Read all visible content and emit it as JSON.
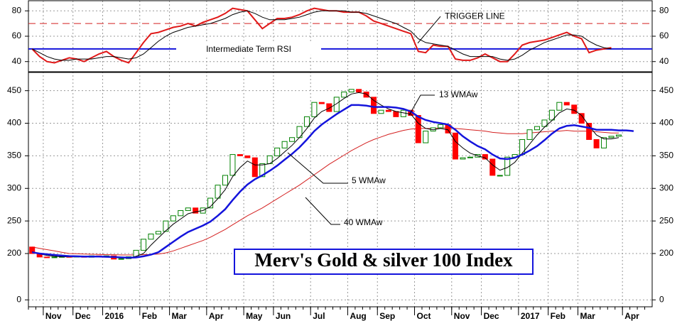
{
  "chart_data": [
    {
      "type": "line",
      "ylim": [
        32,
        88
      ],
      "yticks": [
        40,
        60,
        80
      ],
      "grid": true,
      "ref_lines": [
        {
          "value": 70,
          "label": "TRIGGER LINE",
          "color": "#d42020",
          "dashed": true
        },
        {
          "value": 50,
          "label": "Intermediate Term RSI",
          "color": "#1414dc",
          "dashed": false
        }
      ],
      "series": [
        {
          "color": "#e01818",
          "values": [
            50,
            44,
            40,
            39,
            41,
            43,
            42,
            40,
            43,
            46,
            48,
            44,
            41,
            39,
            47,
            55,
            62,
            63,
            65,
            67,
            68,
            70,
            68,
            71,
            73,
            75,
            78,
            82,
            81,
            80,
            73,
            66,
            70,
            74,
            74,
            75,
            77,
            80,
            82,
            81,
            80,
            80,
            79,
            79,
            79,
            76,
            72,
            70,
            68,
            66,
            64,
            62,
            48,
            47,
            53,
            52,
            52,
            42,
            41,
            41,
            43,
            46,
            43,
            40,
            40,
            46,
            53,
            55,
            56,
            57,
            59,
            61,
            63,
            60,
            58,
            47,
            49,
            50,
            51,
            null,
            null,
            null,
            null,
            null
          ]
        },
        {
          "color": "#000000",
          "values": [
            50,
            47,
            44,
            42,
            41,
            41,
            42,
            42,
            42,
            43,
            44,
            44,
            43,
            42,
            43,
            46,
            51,
            56,
            60,
            63,
            65,
            67,
            68,
            69,
            70,
            72,
            74,
            77,
            79,
            80,
            78,
            75,
            73,
            73,
            73,
            74,
            75,
            77,
            79,
            80,
            80,
            80,
            80,
            79,
            79,
            78,
            76,
            74,
            72,
            70,
            67,
            64,
            58,
            55,
            54,
            53,
            52,
            49,
            46,
            44,
            44,
            44,
            44,
            42,
            41,
            42,
            45,
            49,
            52,
            55,
            57,
            59,
            61,
            61,
            60,
            56,
            53,
            51,
            50,
            null,
            null,
            null,
            null,
            null
          ]
        }
      ]
    },
    {
      "type": "candlestick",
      "title": "Merv's Gold & silver 100 Index",
      "ylim": [
        -30,
        478
      ],
      "yticks": [
        0,
        200,
        250,
        300,
        350,
        400,
        450
      ],
      "grid": true,
      "categories": [
        null,
        null,
        "Nov",
        null,
        null,
        null,
        "Dec",
        null,
        null,
        null,
        "2016",
        null,
        null,
        null,
        null,
        "Feb",
        null,
        null,
        null,
        "Mar",
        null,
        null,
        null,
        null,
        "Apr",
        null,
        null,
        null,
        null,
        "May",
        null,
        null,
        null,
        "Jun",
        null,
        null,
        null,
        null,
        "Jul",
        null,
        null,
        null,
        null,
        "Aug",
        null,
        null,
        null,
        "Sep",
        null,
        null,
        null,
        null,
        "Oct",
        null,
        null,
        null,
        null,
        "Nov",
        null,
        null,
        null,
        "Dec",
        null,
        null,
        null,
        null,
        "2017",
        null,
        null,
        null,
        "Feb",
        null,
        null,
        null,
        "Mar",
        null,
        null,
        null,
        null,
        null,
        "Apr",
        null,
        null,
        null
      ],
      "up_color": "#008000",
      "down_color": "#ff0000",
      "open": [
        210,
        200,
        185,
        182,
        185,
        187,
        185,
        188,
        184,
        190,
        186,
        190,
        176,
        178,
        186,
        205,
        222,
        230,
        234,
        250,
        258,
        266,
        270,
        262,
        270,
        285,
        305,
        320,
        352,
        350,
        347,
        318,
        338,
        350,
        362,
        372,
        378,
        395,
        410,
        432,
        430,
        418,
        440,
        448,
        452,
        448,
        440,
        415,
        420,
        418,
        410,
        420,
        412,
        370,
        388,
        393,
        398,
        385,
        345,
        347,
        348,
        352,
        345,
        320,
        320,
        348,
        352,
        375,
        390,
        395,
        405,
        420,
        432,
        428,
        415,
        400,
        375,
        362,
        378,
        380,
        null,
        null,
        null,
        null
      ],
      "close": [
        200,
        185,
        182,
        185,
        187,
        185,
        188,
        184,
        190,
        186,
        190,
        176,
        178,
        186,
        205,
        222,
        230,
        234,
        250,
        258,
        266,
        270,
        262,
        270,
        285,
        305,
        320,
        352,
        350,
        347,
        318,
        338,
        350,
        362,
        372,
        378,
        395,
        410,
        432,
        430,
        418,
        440,
        448,
        452,
        448,
        440,
        415,
        420,
        418,
        410,
        420,
        412,
        370,
        388,
        393,
        398,
        385,
        345,
        347,
        348,
        352,
        345,
        320,
        320,
        348,
        352,
        375,
        390,
        395,
        405,
        420,
        432,
        428,
        415,
        400,
        375,
        362,
        378,
        380,
        382,
        null,
        null,
        null,
        null
      ],
      "series": [
        {
          "name": "5 WMAw",
          "color": "#000000",
          "values": [
            203,
            198,
            192,
            188,
            186,
            186,
            186,
            186,
            187,
            187,
            188,
            184,
            181,
            181,
            188,
            200,
            213,
            224,
            235,
            245,
            253,
            261,
            264,
            266,
            272,
            284,
            298,
            318,
            332,
            342,
            336,
            336,
            338,
            346,
            356,
            366,
            378,
            392,
            408,
            418,
            423,
            430,
            438,
            445,
            447,
            445,
            435,
            428,
            422,
            418,
            416,
            414,
            400,
            392,
            390,
            392,
            390,
            372,
            362,
            354,
            350,
            347,
            336,
            328,
            332,
            340,
            354,
            368,
            382,
            394,
            404,
            416,
            422,
            420,
            412,
            396,
            382,
            376,
            376,
            378,
            null,
            null,
            null,
            null
          ]
        },
        {
          "name": "13 WMAw",
          "color": "#1414dc",
          "values": [
            202,
            200,
            197,
            194,
            191,
            189,
            188,
            187,
            187,
            187,
            186,
            185,
            183,
            182,
            183,
            188,
            195,
            202,
            210,
            218,
            226,
            233,
            238,
            243,
            249,
            258,
            268,
            282,
            295,
            306,
            314,
            320,
            327,
            335,
            344,
            353,
            363,
            375,
            388,
            398,
            406,
            414,
            421,
            428,
            428,
            427,
            425,
            425,
            425,
            424,
            422,
            418,
            410,
            405,
            402,
            400,
            398,
            390,
            380,
            372,
            365,
            360,
            352,
            346,
            345,
            347,
            352,
            358,
            365,
            374,
            384,
            392,
            396,
            397,
            395,
            393,
            390,
            390,
            390,
            389,
            389,
            388,
            null,
            null
          ]
        },
        {
          "name": "40 WMAw",
          "color": "#d42020",
          "values": [
            210,
            208,
            206,
            204,
            202,
            200,
            199,
            198,
            197,
            196,
            195,
            195,
            194,
            194,
            194,
            195,
            196,
            198,
            201,
            204,
            208,
            212,
            216,
            220,
            225,
            231,
            237,
            244,
            251,
            258,
            264,
            270,
            277,
            284,
            291,
            298,
            305,
            313,
            321,
            329,
            337,
            344,
            351,
            358,
            364,
            370,
            375,
            379,
            383,
            386,
            389,
            391,
            392,
            392,
            392,
            393,
            393,
            392,
            391,
            390,
            389,
            388,
            386,
            385,
            384,
            384,
            384,
            385,
            386,
            387,
            388,
            388,
            389,
            388,
            388,
            388,
            387,
            386,
            385,
            385,
            null,
            null,
            null,
            null
          ]
        }
      ]
    }
  ]
}
